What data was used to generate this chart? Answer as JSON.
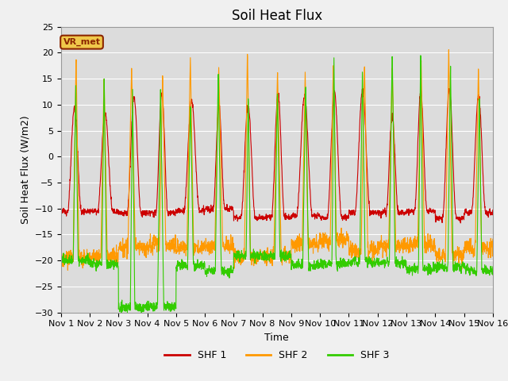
{
  "title": "Soil Heat Flux",
  "ylabel": "Soil Heat Flux (W/m2)",
  "xlabel": "Time",
  "ylim": [
    -30,
    25
  ],
  "yticks": [
    -30,
    -25,
    -20,
    -15,
    -10,
    -5,
    0,
    5,
    10,
    15,
    20,
    25
  ],
  "colors": {
    "SHF 1": "#cc0000",
    "SHF 2": "#ff9900",
    "SHF 3": "#33cc00"
  },
  "background_color": "#dcdcdc",
  "fig_facecolor": "#f0f0f0",
  "label_box": "VR_met",
  "legend_labels": [
    "SHF 1",
    "SHF 2",
    "SHF 3"
  ],
  "n_days": 15,
  "points_per_day": 144,
  "xtick_labels": [
    "Nov 1",
    "Nov 2",
    "Nov 3",
    "Nov 4",
    "Nov 5",
    "Nov 6",
    "Nov 7",
    "Nov 8",
    "Nov 9",
    "Nov 10",
    "Nov 11",
    "Nov 12",
    "Nov 13",
    "Nov 14",
    "Nov 15",
    "Nov 16"
  ],
  "title_fontsize": 12,
  "axis_label_fontsize": 9,
  "tick_fontsize": 8
}
